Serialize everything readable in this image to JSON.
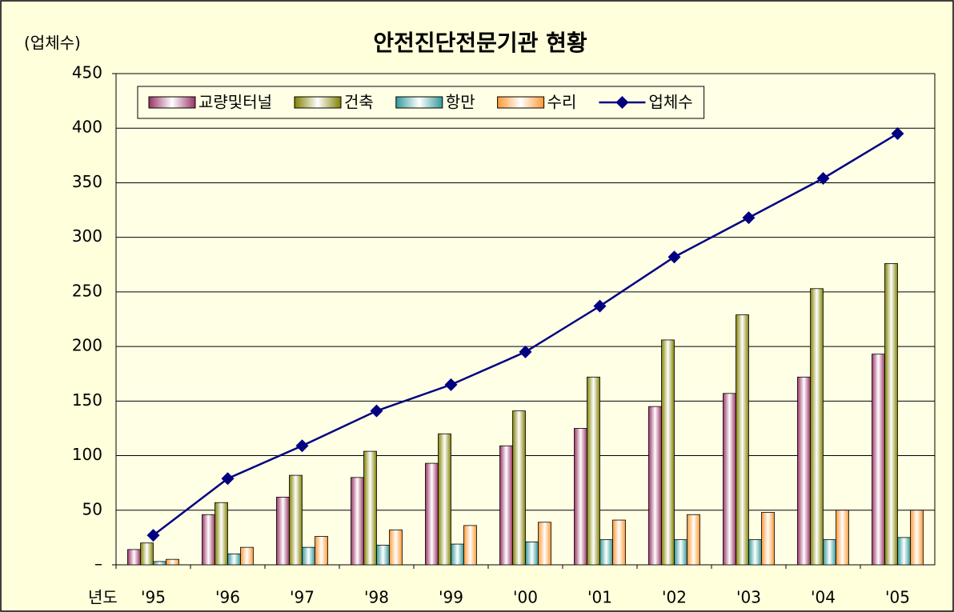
{
  "chart_data": {
    "type": "bar",
    "title": "안전진단전문기관 현황",
    "y_label": "(업체수)",
    "x_label": "년도",
    "categories": [
      "'95",
      "'96",
      "'97",
      "'98",
      "'99",
      "'00",
      "'01",
      "'02",
      "'03",
      "'04",
      "'05"
    ],
    "series": [
      {
        "name": "교량및터널",
        "type": "bar",
        "color": "#993366",
        "values": [
          14,
          46,
          62,
          80,
          93,
          109,
          125,
          145,
          157,
          172,
          193
        ]
      },
      {
        "name": "건축",
        "type": "bar",
        "color": "#808000",
        "values": [
          20,
          57,
          82,
          104,
          120,
          141,
          172,
          206,
          229,
          253,
          276
        ]
      },
      {
        "name": "항만",
        "type": "bar",
        "color": "#339999",
        "values": [
          3,
          10,
          16,
          18,
          19,
          21,
          23,
          23,
          23,
          23,
          25
        ]
      },
      {
        "name": "수리",
        "type": "bar",
        "color": "#ff9933",
        "values": [
          5,
          16,
          26,
          32,
          36,
          39,
          41,
          46,
          48,
          50,
          50
        ]
      },
      {
        "name": "업체수",
        "type": "line",
        "color": "#000080",
        "values": [
          27,
          79,
          109,
          141,
          165,
          195,
          237,
          282,
          318,
          354,
          395
        ]
      }
    ],
    "ylim": [
      0,
      450
    ],
    "yticks": [
      {
        "value": 0,
        "label": "–"
      },
      50,
      100,
      150,
      200,
      250,
      300,
      350,
      400,
      450
    ],
    "grid": true,
    "legend": "top"
  }
}
